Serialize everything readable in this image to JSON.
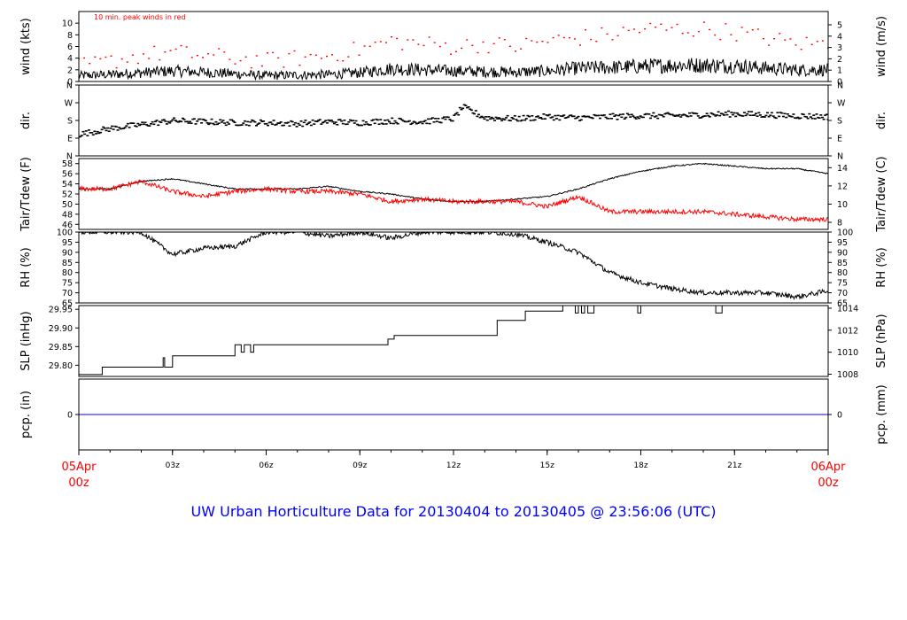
{
  "title": "UW Urban Horticulture Data for 20130404  to  20130405 @ 23:56:06  (UTC)",
  "colors": {
    "red": "#ff0000",
    "blue": "#0000ff",
    "black": "#000000"
  },
  "time_axis": {
    "ticks": [
      {
        "hour": 0,
        "label": "05Apr",
        "label2": "00z",
        "major": true
      },
      {
        "hour": 3,
        "label": "03z"
      },
      {
        "hour": 6,
        "label": "06z"
      },
      {
        "hour": 9,
        "label": "09z"
      },
      {
        "hour": 12,
        "label": "12z"
      },
      {
        "hour": 15,
        "label": "15z"
      },
      {
        "hour": 18,
        "label": "18z"
      },
      {
        "hour": 21,
        "label": "21z"
      },
      {
        "hour": 24,
        "label": "06Apr",
        "label2": "00z",
        "major": true
      }
    ]
  },
  "chart_data": [
    {
      "id": "wind",
      "type": "line",
      "ylabel_left": "wind (kts)",
      "ylabel_right": "wind (m/s)",
      "annotation": "10 min. peak winds in red",
      "ylim": [
        0,
        12
      ],
      "left_ticks": [
        0,
        2,
        4,
        6,
        8,
        10
      ],
      "right_ticks": [
        {
          "v": 0,
          "label": "0"
        },
        {
          "v": 1.944,
          "label": "1"
        },
        {
          "v": 3.888,
          "label": "2"
        },
        {
          "v": 5.832,
          "label": "3"
        },
        {
          "v": 7.776,
          "label": "4"
        },
        {
          "v": 9.72,
          "label": "5"
        }
      ],
      "series": [
        {
          "color": "#000000",
          "style": "line",
          "x": [
            0,
            1,
            2,
            3,
            4,
            5,
            6,
            7,
            8,
            9,
            10,
            11,
            12,
            13,
            14,
            15,
            16,
            17,
            18,
            19,
            20,
            21,
            22,
            23,
            24
          ],
          "y": [
            1.0,
            1.2,
            1.5,
            1.8,
            1.6,
            1.3,
            1.0,
            1.1,
            1.2,
            1.5,
            2.2,
            2.0,
            1.8,
            1.7,
            1.6,
            1.8,
            2.3,
            2.4,
            2.6,
            2.8,
            2.8,
            2.7,
            2.3,
            2.0,
            2.0
          ]
        },
        {
          "color": "#ff0000",
          "style": "dots",
          "x": [
            0,
            1,
            2,
            3,
            4,
            5,
            6,
            7,
            8,
            9,
            10,
            11,
            12,
            13,
            14,
            15,
            16,
            17,
            18,
            19,
            20,
            21,
            22,
            23,
            24
          ],
          "y": [
            2.5,
            3.5,
            4.5,
            5,
            4.5,
            4,
            3.5,
            4,
            4.5,
            5.5,
            7,
            6.5,
            6,
            6.5,
            6,
            7,
            7.5,
            8,
            9,
            9,
            9,
            8.5,
            7.5,
            6.5,
            6.5
          ]
        }
      ]
    },
    {
      "id": "dir",
      "type": "scatter",
      "ylabel_left": "dir.",
      "ylabel_right": "dir.",
      "ylim": [
        0,
        360
      ],
      "left_ticks": [
        {
          "v": 0,
          "label": "N"
        },
        {
          "v": 90,
          "label": "E"
        },
        {
          "v": 180,
          "label": "S"
        },
        {
          "v": 270,
          "label": "W"
        },
        {
          "v": 360,
          "label": "N"
        }
      ],
      "right_ticks": [
        {
          "v": 0,
          "label": "N"
        },
        {
          "v": 90,
          "label": "E"
        },
        {
          "v": 180,
          "label": "S"
        },
        {
          "v": 270,
          "label": "W"
        },
        {
          "v": 360,
          "label": "N"
        }
      ],
      "series": [
        {
          "color": "#000000",
          "style": "dots",
          "x": [
            0,
            0.5,
            1,
            2,
            3,
            4,
            5,
            6,
            7,
            8,
            9,
            10,
            11,
            12,
            12.3,
            13,
            14,
            15,
            16,
            17,
            18,
            19,
            20,
            21,
            22,
            23,
            24
          ],
          "y": [
            110,
            125,
            140,
            160,
            180,
            175,
            170,
            170,
            165,
            175,
            170,
            180,
            175,
            190,
            250,
            195,
            190,
            200,
            195,
            200,
            205,
            205,
            210,
            215,
            210,
            205,
            200
          ]
        }
      ]
    },
    {
      "id": "temp",
      "type": "line",
      "ylabel_left": "Tair/Tdew (F)",
      "ylabel_right": "Tair/Tdew (C)",
      "ylim": [
        45,
        59
      ],
      "left_ticks": [
        46,
        48,
        50,
        52,
        54,
        56,
        58
      ],
      "right_ticks": [
        {
          "v": 46.4,
          "label": "8"
        },
        {
          "v": 50.0,
          "label": "10"
        },
        {
          "v": 53.6,
          "label": "12"
        },
        {
          "v": 57.2,
          "label": "14"
        }
      ],
      "series": [
        {
          "color": "#000000",
          "style": "line",
          "x": [
            0,
            1,
            2,
            3,
            4,
            5,
            6,
            7,
            8,
            9,
            10,
            11,
            12,
            13,
            14,
            15,
            16,
            17,
            18,
            19,
            20,
            21,
            22,
            23,
            24
          ],
          "y": [
            53,
            53,
            54.5,
            55,
            54,
            53,
            53,
            53,
            53.5,
            52.5,
            52,
            51,
            50.5,
            50.5,
            51,
            51.5,
            53,
            55,
            56.5,
            57.5,
            58,
            57.5,
            57,
            57,
            56
          ]
        },
        {
          "color": "#ff0000",
          "style": "line",
          "x": [
            0,
            1,
            2,
            3,
            4,
            5,
            6,
            7,
            8,
            9,
            10,
            11,
            12,
            13,
            14,
            15,
            16,
            17,
            18,
            19,
            20,
            21,
            22,
            23,
            24
          ],
          "y": [
            53,
            53,
            54.5,
            52.5,
            51.5,
            52.5,
            53,
            52.5,
            52.5,
            52,
            50.5,
            51,
            50.5,
            50.5,
            50.5,
            49.5,
            51.5,
            48.5,
            48.5,
            48.5,
            48.5,
            48,
            47.5,
            47,
            47
          ]
        }
      ]
    },
    {
      "id": "rh",
      "type": "line",
      "ylabel_left": "RH (%)",
      "ylabel_right": "RH (%)",
      "ylim": [
        65,
        100
      ],
      "left_ticks": [
        65,
        70,
        75,
        80,
        85,
        90,
        95,
        100
      ],
      "right_ticks": [
        {
          "v": 65,
          "label": "65"
        },
        {
          "v": 70,
          "label": "70"
        },
        {
          "v": 75,
          "label": "75"
        },
        {
          "v": 80,
          "label": "80"
        },
        {
          "v": 85,
          "label": "85"
        },
        {
          "v": 90,
          "label": "90"
        },
        {
          "v": 95,
          "label": "95"
        },
        {
          "v": 100,
          "label": "100"
        }
      ],
      "series": [
        {
          "color": "#000000",
          "style": "line",
          "x": [
            0,
            1,
            2,
            3,
            4,
            5,
            6,
            7,
            8,
            9,
            10,
            11,
            12,
            13,
            14,
            15,
            16,
            17,
            18,
            19,
            20,
            21,
            22,
            23,
            24
          ],
          "y": [
            100,
            100,
            100,
            89,
            92,
            93,
            100,
            100,
            98,
            100,
            97,
            100,
            100,
            100,
            99,
            95,
            90,
            80,
            75,
            72,
            70,
            70,
            70,
            68,
            71
          ]
        }
      ]
    },
    {
      "id": "slp",
      "type": "line",
      "ylabel_left": "SLP (inHg)",
      "ylabel_right": "SLP (hPa)",
      "ylim": [
        29.77,
        29.96
      ],
      "left_ticks": [
        {
          "v": 29.8,
          "label": "29.80"
        },
        {
          "v": 29.85,
          "label": "29.85"
        },
        {
          "v": 29.9,
          "label": "29.90"
        },
        {
          "v": 29.95,
          "label": "29.95"
        }
      ],
      "right_ticks": [
        {
          "v": 29.776,
          "label": "1008"
        },
        {
          "v": 29.835,
          "label": "1010"
        },
        {
          "v": 29.894,
          "label": "1012"
        },
        {
          "v": 29.953,
          "label": "1014"
        }
      ],
      "series": [
        {
          "color": "#000000",
          "style": "step",
          "x": [
            0,
            0.75,
            2.7,
            2.75,
            3.0,
            5.0,
            5.2,
            5.3,
            5.5,
            5.6,
            5.7,
            6.5,
            9.9,
            10.1,
            13.4,
            14.3,
            15.5,
            15.9,
            16.0,
            16.1,
            16.2,
            16.3,
            16.5,
            17.9,
            18.0,
            20.4,
            20.6,
            24
          ],
          "y": [
            29.775,
            29.795,
            29.82,
            29.795,
            29.825,
            29.855,
            29.835,
            29.855,
            29.835,
            29.855,
            29.855,
            29.855,
            29.87,
            29.88,
            29.92,
            29.945,
            29.96,
            29.94,
            29.96,
            29.94,
            29.96,
            29.94,
            29.96,
            29.94,
            29.96,
            29.94,
            29.96,
            29.96
          ]
        }
      ]
    },
    {
      "id": "pcp",
      "type": "line",
      "ylabel_left": "pcp. (in)",
      "ylabel_right": "pcp. (mm)",
      "ylim": [
        -1,
        1
      ],
      "left_ticks": [
        {
          "v": 0,
          "label": "0"
        }
      ],
      "right_ticks": [
        {
          "v": 0,
          "label": "0"
        }
      ],
      "series": [
        {
          "color": "#0000ff",
          "style": "line",
          "x": [
            0,
            24
          ],
          "y": [
            0,
            0
          ]
        }
      ]
    }
  ]
}
